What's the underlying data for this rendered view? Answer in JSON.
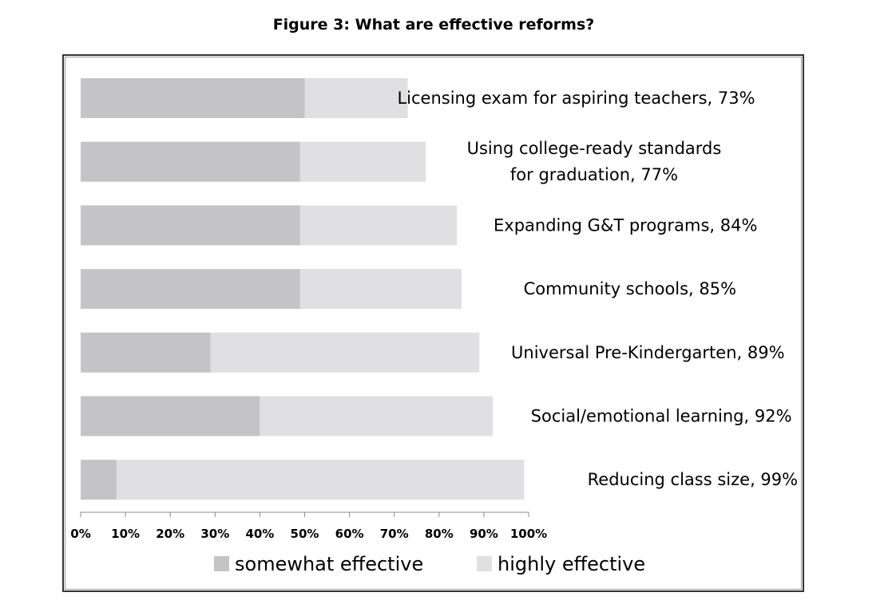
{
  "chart_data": {
    "type": "bar",
    "orientation": "horizontal",
    "stacked": true,
    "title": "Figure 3: What are effective reforms?",
    "xlabel": "",
    "ylabel": "",
    "xlim": [
      0,
      100
    ],
    "x_ticks": [
      "0%",
      "10%",
      "20%",
      "30%",
      "40%",
      "50%",
      "60%",
      "70%",
      "80%",
      "90%",
      "100%"
    ],
    "categories": [
      [
        "Licensing exam for aspiring teachers, 73%"
      ],
      [
        "Using college-ready standards",
        "for graduation, 77%"
      ],
      [
        "Expanding G&T programs, 84%"
      ],
      [
        "Community schools, 85%"
      ],
      [
        "Universal Pre-Kindergarten, 89%"
      ],
      [
        "Social/emotional learning, 92%"
      ],
      [
        "Reducing class size, 99%"
      ]
    ],
    "series": [
      {
        "name": "somewhat effective",
        "color": "#c4c3c5",
        "values": [
          50,
          49,
          49,
          49,
          29,
          40,
          8
        ]
      },
      {
        "name": "highly effective",
        "color": "#e0dfe1",
        "values": [
          23,
          28,
          35,
          36,
          60,
          52,
          91
        ]
      }
    ],
    "totals": [
      73,
      77,
      84,
      85,
      89,
      92,
      99
    ],
    "legend": {
      "position": "bottom",
      "items": [
        "somewhat effective",
        "highly effective"
      ]
    }
  }
}
